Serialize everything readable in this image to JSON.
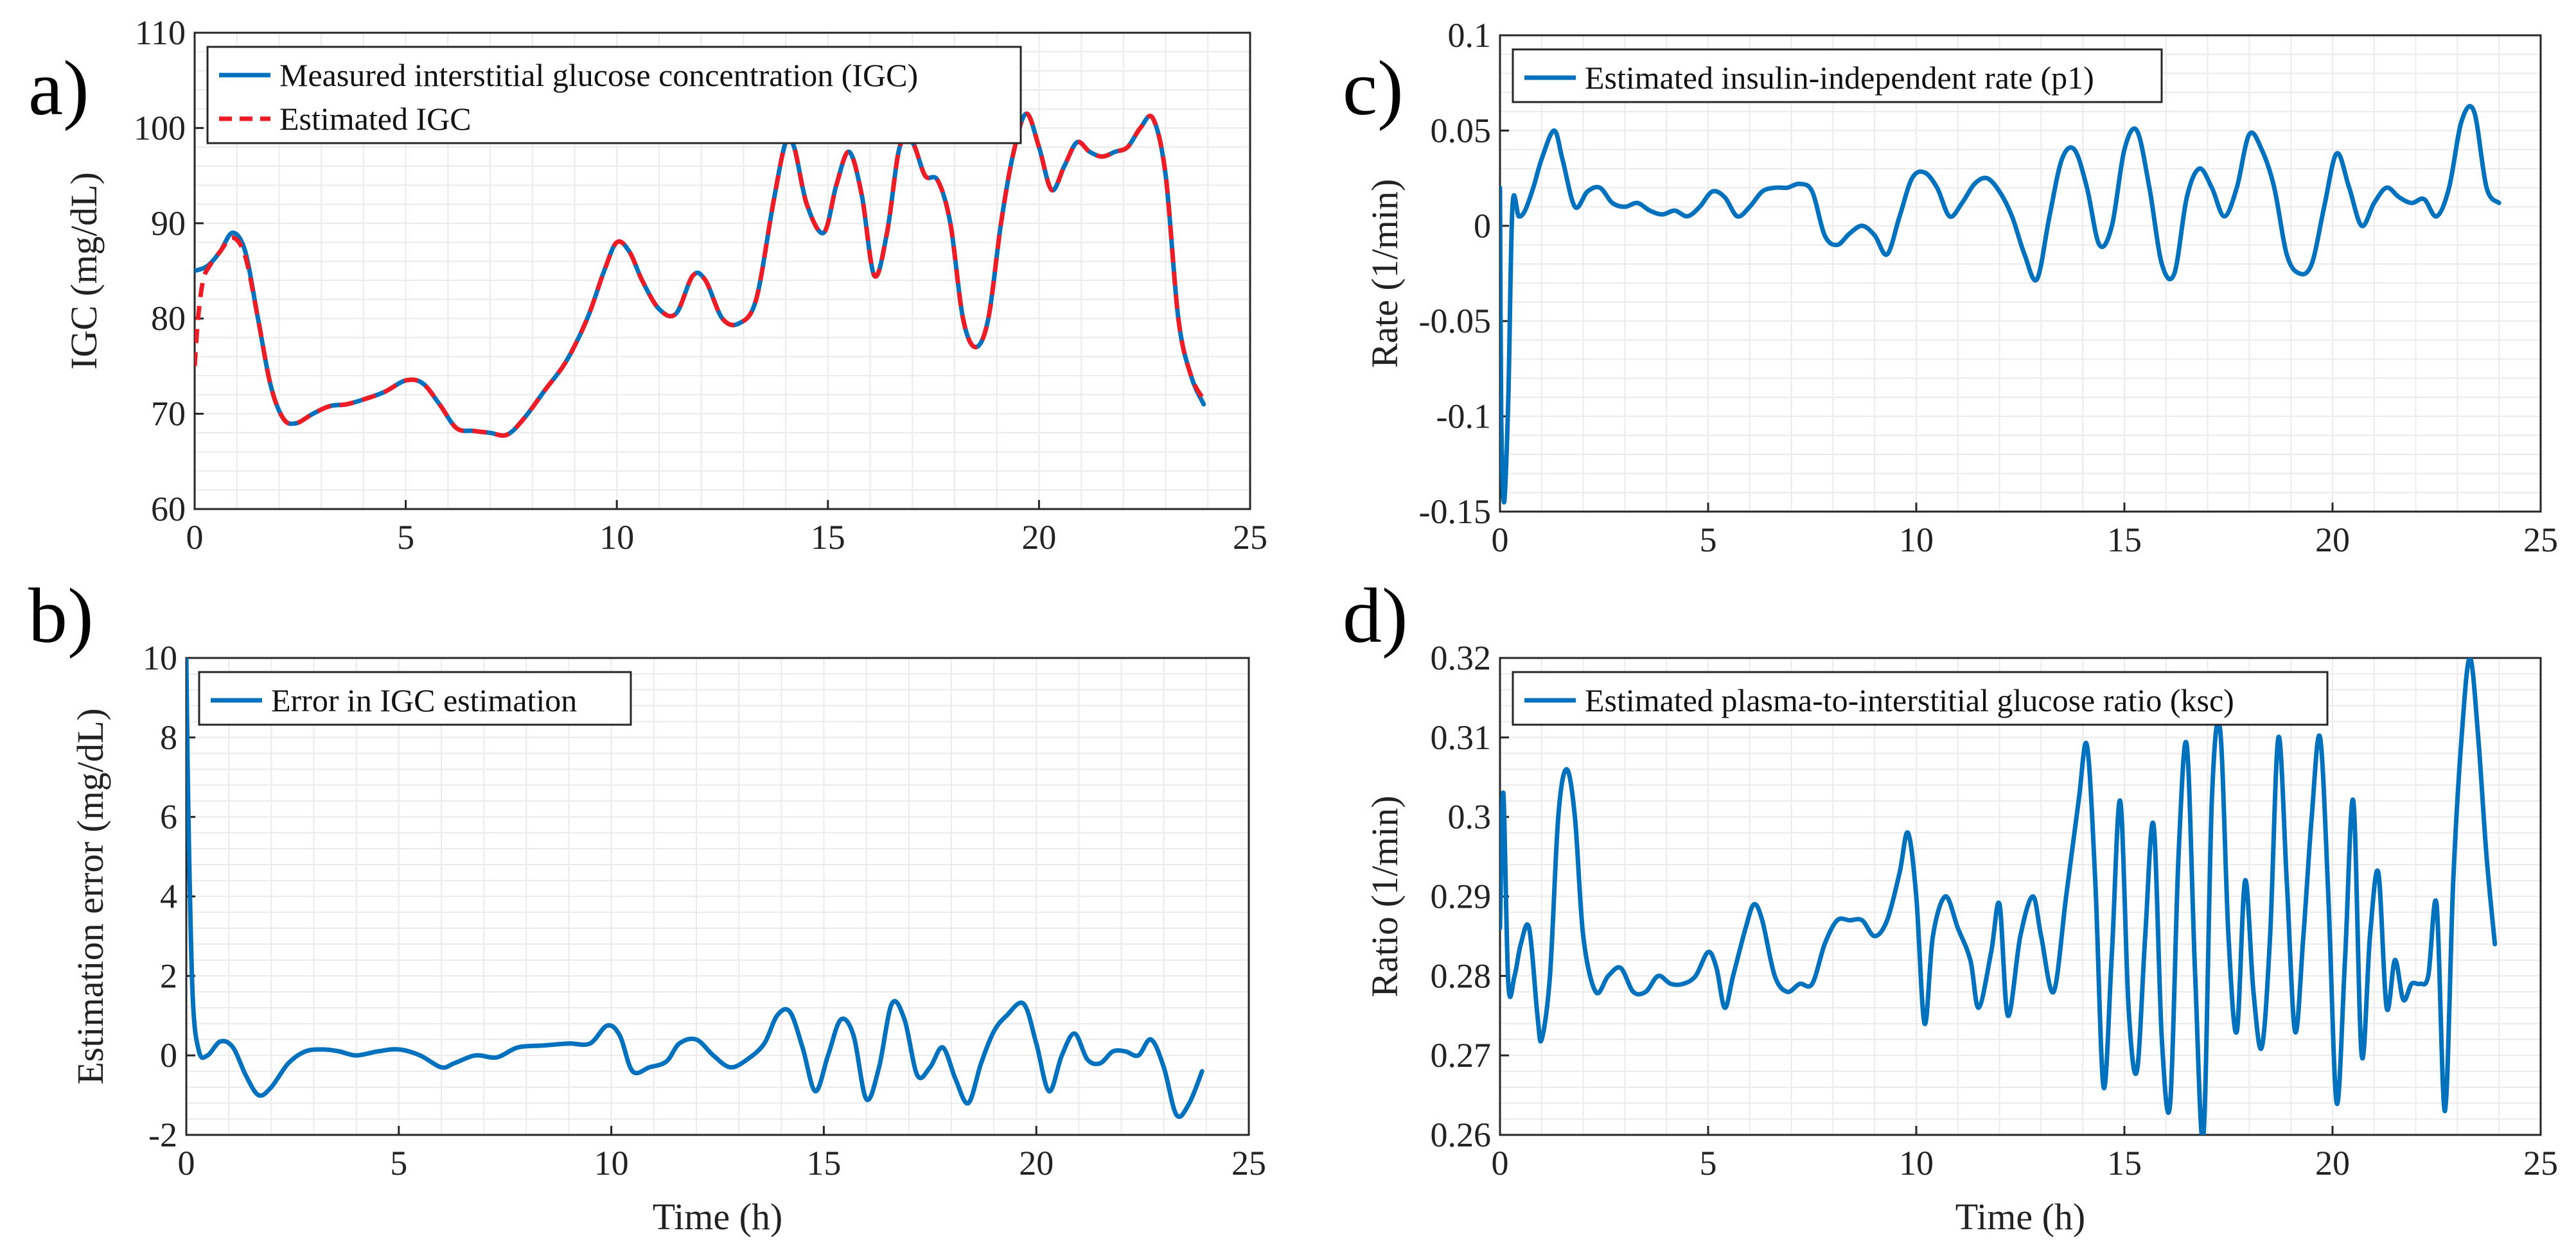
{
  "chart_data": [
    {
      "id": "a",
      "panel_label": "a)",
      "type": "line",
      "xlabel": "",
      "ylabel": "IGC (mg/dL)",
      "xlim": [
        0,
        25
      ],
      "ylim": [
        60,
        110
      ],
      "xticks": [
        0,
        5,
        10,
        15,
        20,
        25
      ],
      "yticks": [
        60,
        70,
        80,
        90,
        100,
        110
      ],
      "grid": true,
      "legend_position": "top-left",
      "series": [
        {
          "name": "Measured interstitial glucose concentration (IGC)",
          "color": "#0072bd",
          "style": "solid",
          "x": [
            0,
            0.3,
            0.6,
            0.9,
            1.2,
            1.5,
            1.8,
            2.1,
            2.4,
            2.8,
            3.2,
            3.6,
            4.0,
            4.5,
            5.0,
            5.4,
            5.8,
            6.2,
            6.6,
            7.0,
            7.4,
            7.8,
            8.3,
            8.8,
            9.3,
            9.7,
            10.0,
            10.3,
            10.6,
            11.0,
            11.4,
            11.8,
            12.1,
            12.5,
            12.9,
            13.3,
            13.7,
            14.0,
            14.2,
            14.5,
            14.9,
            15.2,
            15.5,
            15.8,
            16.1,
            16.4,
            16.7,
            17.0,
            17.3,
            17.6,
            17.9,
            18.2,
            18.5,
            18.8,
            19.1,
            19.4,
            19.7,
            20.0,
            20.3,
            20.6,
            20.9,
            21.2,
            21.5,
            21.8,
            22.1,
            22.4,
            22.7,
            23.0,
            23.3,
            23.6,
            23.9
          ],
          "values": [
            85,
            85.5,
            87,
            89,
            87,
            80,
            73,
            69.5,
            69,
            70,
            70.8,
            71,
            71.5,
            72.3,
            73.5,
            73.2,
            71,
            68.5,
            68.2,
            68,
            67.8,
            69.5,
            72.5,
            75.5,
            80,
            85,
            88,
            87,
            84,
            81,
            80.5,
            84.5,
            84,
            80,
            79.5,
            82,
            92,
            98.5,
            98,
            92,
            89,
            94,
            97.5,
            93,
            84.5,
            89,
            98,
            98.5,
            95,
            94.5,
            90,
            80,
            77,
            80,
            90,
            97.5,
            101.5,
            98,
            93.5,
            96,
            98.5,
            97.5,
            97,
            97.5,
            98,
            100,
            101,
            95,
            80,
            74,
            71
          ]
        },
        {
          "name": "Estimated IGC",
          "color": "#ee1c25",
          "style": "dashed",
          "x": [
            0,
            0.08,
            0.2,
            0.35,
            0.6,
            0.9,
            1.2,
            1.5,
            1.8,
            2.1,
            2.4,
            2.8,
            3.2,
            3.6,
            4.0,
            4.5,
            5.0,
            5.4,
            5.8,
            6.2,
            6.6,
            7.0,
            7.4,
            7.8,
            8.3,
            8.8,
            9.3,
            9.7,
            10.0,
            10.3,
            10.6,
            11.0,
            11.4,
            11.8,
            12.1,
            12.5,
            12.9,
            13.3,
            13.7,
            14.0,
            14.2,
            14.5,
            14.9,
            15.2,
            15.5,
            15.8,
            16.1,
            16.4,
            16.7,
            17.0,
            17.3,
            17.6,
            17.9,
            18.2,
            18.5,
            18.8,
            19.1,
            19.4,
            19.7,
            20.0,
            20.3,
            20.6,
            20.9,
            21.2,
            21.5,
            21.8,
            22.1,
            22.4,
            22.7,
            23.0,
            23.3,
            23.6,
            23.9
          ],
          "values": [
            75,
            80,
            84,
            85.5,
            87,
            88.5,
            86.5,
            80,
            73,
            69.5,
            69,
            70,
            70.8,
            71,
            71.5,
            72.3,
            73.5,
            73.2,
            71,
            68.5,
            68.2,
            68,
            67.8,
            69.5,
            72.5,
            75.5,
            80,
            85,
            88,
            87,
            84,
            81,
            80.5,
            84.5,
            84,
            80,
            79.5,
            82,
            92,
            98.5,
            98,
            92,
            89,
            94,
            97.5,
            93,
            84.5,
            89,
            98,
            98.5,
            95,
            94.5,
            90,
            80,
            77,
            80,
            90,
            97.5,
            101.5,
            98,
            93.5,
            96,
            98.5,
            97.5,
            97,
            97.5,
            98,
            100,
            101,
            95,
            80,
            74,
            71.5
          ]
        }
      ]
    },
    {
      "id": "b",
      "panel_label": "b)",
      "type": "line",
      "xlabel": "Time (h)",
      "ylabel": "Estimation error (mg/dL)",
      "xlim": [
        0,
        25
      ],
      "ylim": [
        -2,
        10
      ],
      "xticks": [
        0,
        5,
        10,
        15,
        20,
        25
      ],
      "yticks": [
        -2,
        0,
        2,
        4,
        6,
        8,
        10
      ],
      "grid": true,
      "legend_position": "top-left",
      "series": [
        {
          "name": "Error in IGC estimation",
          "color": "#0072bd",
          "style": "solid",
          "x": [
            0,
            0.05,
            0.15,
            0.3,
            0.5,
            0.8,
            1.1,
            1.4,
            1.7,
            2.0,
            2.4,
            2.8,
            3.2,
            3.6,
            4.0,
            4.5,
            5.0,
            5.5,
            6.0,
            6.3,
            6.8,
            7.3,
            7.8,
            8.4,
            9.0,
            9.5,
            9.9,
            10.2,
            10.5,
            10.9,
            11.3,
            11.6,
            12.0,
            12.4,
            12.8,
            13.2,
            13.6,
            13.9,
            14.2,
            14.5,
            14.8,
            15.1,
            15.4,
            15.7,
            16.0,
            16.3,
            16.6,
            16.9,
            17.2,
            17.5,
            17.8,
            18.1,
            18.4,
            18.7,
            19.0,
            19.3,
            19.7,
            20.0,
            20.3,
            20.6,
            20.9,
            21.2,
            21.5,
            21.8,
            22.1,
            22.4,
            22.7,
            23.0,
            23.3,
            23.6,
            23.9
          ],
          "values": [
            10,
            6,
            1.5,
            0.1,
            0,
            0.35,
            0.2,
            -0.5,
            -1.0,
            -0.8,
            -0.2,
            0.1,
            0.15,
            0.1,
            0,
            0.1,
            0.15,
            0,
            -0.3,
            -0.2,
            0,
            -0.05,
            0.2,
            0.25,
            0.3,
            0.3,
            0.75,
            0.5,
            -0.4,
            -0.3,
            -0.15,
            0.3,
            0.4,
            0,
            -0.3,
            -0.1,
            0.3,
            1.0,
            1.1,
            0.2,
            -0.9,
            0,
            0.9,
            0.5,
            -1.1,
            -0.3,
            1.3,
            0.9,
            -0.5,
            -0.3,
            0.2,
            -0.6,
            -1.2,
            -0.2,
            0.6,
            1.0,
            1.3,
            0.3,
            -0.9,
            0,
            0.55,
            -0.1,
            -0.2,
            0.1,
            0.1,
            0,
            0.4,
            -0.3,
            -1.5,
            -1.2,
            -0.4
          ]
        }
      ]
    },
    {
      "id": "c",
      "panel_label": "c)",
      "type": "line",
      "xlabel": "",
      "ylabel": "Rate (1/min)",
      "xlim": [
        0,
        25
      ],
      "ylim": [
        -0.15,
        0.1
      ],
      "xticks": [
        0,
        5,
        10,
        15,
        20,
        25
      ],
      "yticks": [
        -0.15,
        -0.1,
        -0.05,
        0,
        0.05,
        0.1
      ],
      "ytick_labels": [
        "-0.15",
        "-0.1",
        "-0.05",
        "0",
        "0.05",
        "0.1"
      ],
      "grid": true,
      "legend_position": "top-left",
      "series": [
        {
          "name": "Estimated insulin-independent rate (p1)",
          "color": "#0072bd",
          "style": "solid",
          "x": [
            0,
            0.03,
            0.1,
            0.2,
            0.3,
            0.45,
            0.6,
            0.8,
            1.0,
            1.3,
            1.5,
            1.8,
            2.1,
            2.4,
            2.7,
            3.0,
            3.3,
            3.6,
            3.9,
            4.2,
            4.5,
            4.8,
            5.1,
            5.4,
            5.7,
            6.0,
            6.3,
            6.6,
            6.9,
            7.2,
            7.5,
            7.8,
            8.1,
            8.4,
            8.7,
            9.0,
            9.3,
            9.6,
            9.9,
            10.2,
            10.5,
            10.8,
            11.1,
            11.4,
            11.7,
            12.0,
            12.3,
            12.6,
            12.9,
            13.2,
            13.5,
            13.8,
            14.1,
            14.4,
            14.7,
            15.0,
            15.3,
            15.6,
            15.9,
            16.2,
            16.5,
            16.8,
            17.1,
            17.4,
            17.7,
            18.0,
            18.3,
            18.6,
            18.9,
            19.2,
            19.5,
            19.8,
            20.1,
            20.4,
            20.7,
            21.0,
            21.3,
            21.6,
            21.9,
            22.2,
            22.5,
            22.8,
            23.1,
            23.4,
            23.7,
            24.0
          ],
          "values": [
            0.02,
            -0.1,
            -0.145,
            -0.09,
            0.01,
            0.005,
            0.008,
            0.02,
            0.035,
            0.05,
            0.035,
            0.01,
            0.018,
            0.02,
            0.012,
            0.01,
            0.012,
            0.008,
            0.006,
            0.008,
            0.005,
            0.01,
            0.018,
            0.015,
            0.005,
            0.01,
            0.018,
            0.02,
            0.02,
            0.022,
            0.018,
            -0.005,
            -0.01,
            -0.004,
            0.0,
            -0.005,
            -0.015,
            0.005,
            0.025,
            0.028,
            0.02,
            0.005,
            0.012,
            0.022,
            0.025,
            0.018,
            0.005,
            -0.015,
            -0.028,
            0.005,
            0.035,
            0.04,
            0.02,
            -0.01,
            0.0,
            0.04,
            0.05,
            0.02,
            -0.02,
            -0.025,
            0.015,
            0.03,
            0.02,
            0.005,
            0.02,
            0.048,
            0.04,
            0.02,
            -0.015,
            -0.025,
            -0.02,
            0.01,
            0.038,
            0.02,
            0.0,
            0.012,
            0.02,
            0.015,
            0.012,
            0.014,
            0.005,
            0.02,
            0.055,
            0.06,
            0.02,
            0.012
          ]
        }
      ]
    },
    {
      "id": "d",
      "panel_label": "d)",
      "type": "line",
      "xlabel": "Time (h)",
      "ylabel": "Ratio (1/min)",
      "xlim": [
        0,
        25
      ],
      "ylim": [
        0.26,
        0.32
      ],
      "xticks": [
        0,
        5,
        10,
        15,
        20,
        25
      ],
      "yticks": [
        0.26,
        0.27,
        0.28,
        0.29,
        0.3,
        0.31,
        0.32
      ],
      "ytick_labels": [
        "0.26",
        "0.27",
        "0.28",
        "0.29",
        "0.3",
        "0.31",
        "0.32"
      ],
      "grid": true,
      "legend_position": "top-left",
      "series": [
        {
          "name": "Estimated plasma-to-interstitial glucose ratio (ksc)",
          "color": "#0072bd",
          "style": "solid",
          "x": [
            0,
            0.08,
            0.2,
            0.35,
            0.5,
            0.7,
            0.9,
            1.0,
            1.2,
            1.4,
            1.6,
            1.8,
            2.0,
            2.3,
            2.6,
            2.9,
            3.2,
            3.5,
            3.8,
            4.1,
            4.4,
            4.7,
            5.0,
            5.2,
            5.4,
            5.6,
            5.9,
            6.1,
            6.3,
            6.6,
            6.9,
            7.2,
            7.5,
            7.8,
            8.1,
            8.4,
            8.7,
            9.0,
            9.3,
            9.6,
            9.8,
            10.0,
            10.2,
            10.4,
            10.7,
            11.0,
            11.3,
            11.5,
            11.8,
            12.0,
            12.2,
            12.5,
            12.8,
            13.0,
            13.3,
            13.6,
            13.9,
            14.1,
            14.3,
            14.5,
            14.7,
            14.9,
            15.1,
            15.3,
            15.5,
            15.7,
            15.9,
            16.1,
            16.3,
            16.5,
            16.7,
            16.9,
            17.1,
            17.3,
            17.5,
            17.7,
            17.9,
            18.1,
            18.3,
            18.5,
            18.7,
            18.9,
            19.1,
            19.3,
            19.5,
            19.7,
            19.9,
            20.1,
            20.3,
            20.5,
            20.7,
            20.9,
            21.1,
            21.3,
            21.5,
            21.7,
            21.9,
            22.1,
            22.3,
            22.5,
            22.7,
            22.9,
            23.1,
            23.3,
            23.5,
            23.7,
            23.9
          ],
          "values": [
            0.286,
            0.303,
            0.279,
            0.28,
            0.284,
            0.286,
            0.275,
            0.272,
            0.28,
            0.3,
            0.306,
            0.3,
            0.285,
            0.278,
            0.28,
            0.281,
            0.278,
            0.278,
            0.28,
            0.279,
            0.279,
            0.28,
            0.283,
            0.281,
            0.276,
            0.28,
            0.286,
            0.289,
            0.287,
            0.28,
            0.278,
            0.279,
            0.279,
            0.284,
            0.287,
            0.287,
            0.287,
            0.285,
            0.287,
            0.293,
            0.298,
            0.29,
            0.274,
            0.285,
            0.29,
            0.286,
            0.282,
            0.276,
            0.283,
            0.289,
            0.275,
            0.285,
            0.29,
            0.285,
            0.278,
            0.29,
            0.302,
            0.309,
            0.292,
            0.266,
            0.283,
            0.302,
            0.276,
            0.268,
            0.285,
            0.299,
            0.272,
            0.264,
            0.295,
            0.309,
            0.28,
            0.26,
            0.302,
            0.311,
            0.285,
            0.273,
            0.292,
            0.278,
            0.271,
            0.285,
            0.31,
            0.292,
            0.273,
            0.285,
            0.3,
            0.31,
            0.29,
            0.264,
            0.282,
            0.302,
            0.27,
            0.285,
            0.293,
            0.276,
            0.282,
            0.277,
            0.279,
            0.279,
            0.28,
            0.289,
            0.263,
            0.292,
            0.31,
            0.32,
            0.31,
            0.295,
            0.284
          ]
        }
      ]
    }
  ]
}
